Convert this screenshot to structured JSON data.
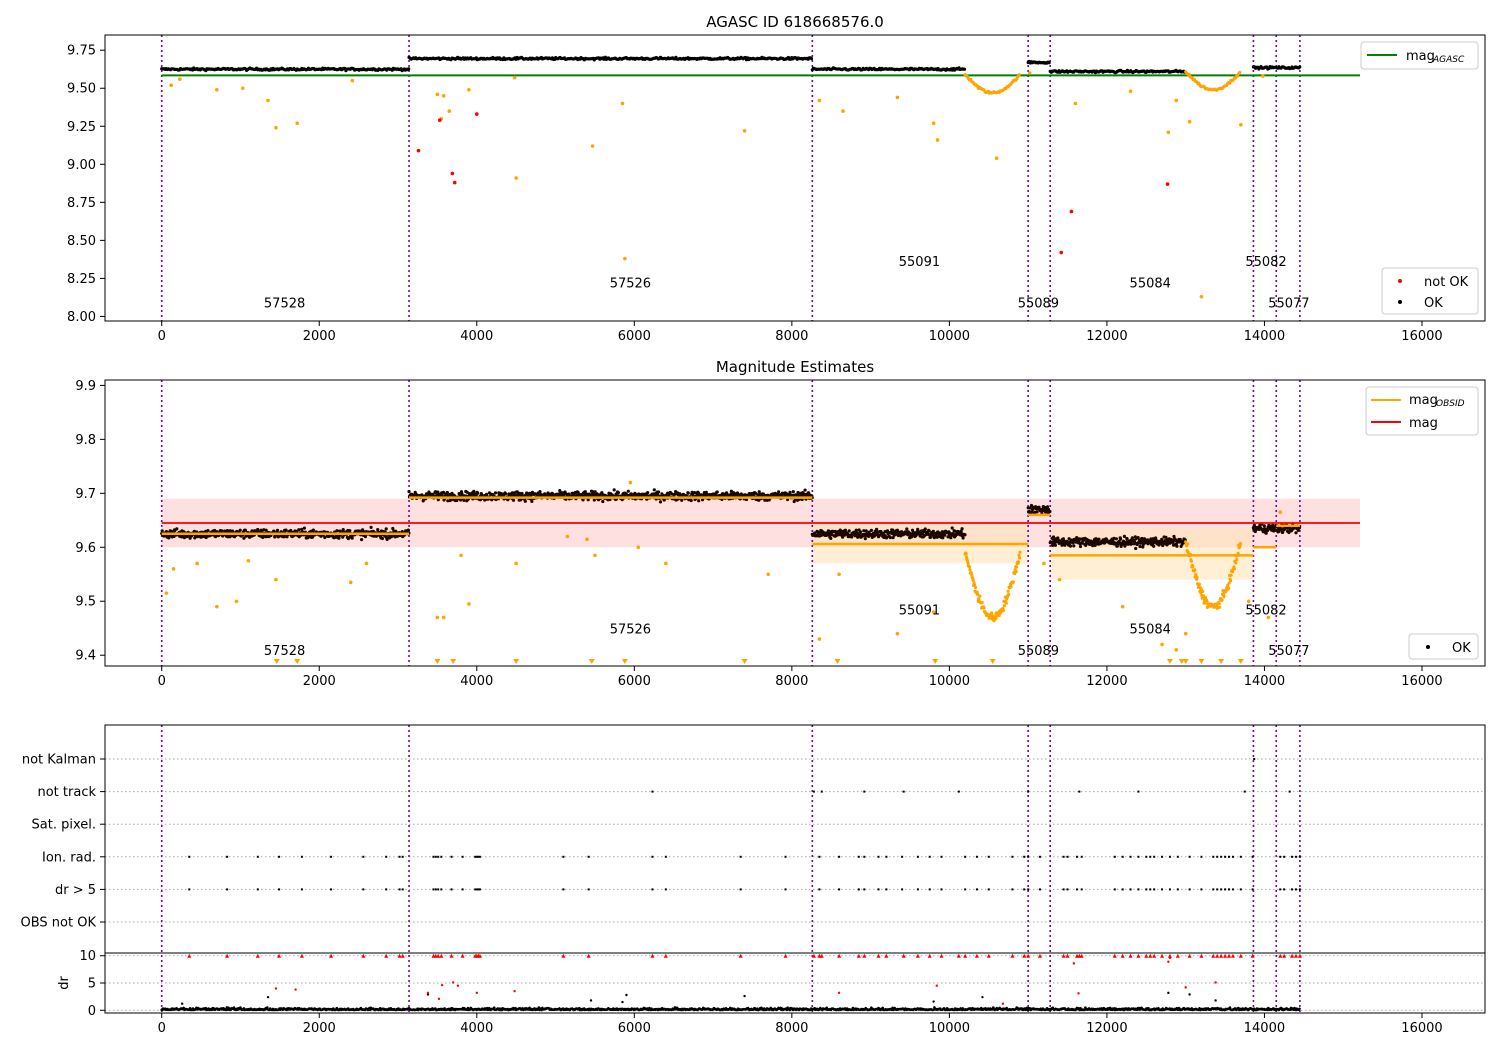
{
  "chart_data": [
    {
      "type": "scatter",
      "title": "AGASC ID 618668576.0",
      "xlabel": "",
      "ylabel": "",
      "xlim": [
        -720,
        16800
      ],
      "ylim": [
        7.97,
        9.85
      ],
      "xticks": [
        0,
        2000,
        4000,
        6000,
        8000,
        10000,
        12000,
        14000,
        16000
      ],
      "yticks": [
        "8.00",
        "8.25",
        "8.50",
        "8.75",
        "9.00",
        "9.25",
        "9.50",
        "9.75"
      ],
      "agasc_mag": 9.585,
      "obsid_boundaries": [
        0,
        3140,
        8260,
        11000,
        11280,
        13860,
        14150,
        14450
      ],
      "obsid_labels": [
        {
          "text": "57528",
          "x": 1560,
          "y": 8.06
        },
        {
          "text": "57526",
          "x": 5950,
          "y": 8.19
        },
        {
          "text": "55091",
          "x": 9620,
          "y": 8.33
        },
        {
          "text": "55089",
          "x": 11130,
          "y": 8.06
        },
        {
          "text": "55084",
          "x": 12550,
          "y": 8.19
        },
        {
          "text": "55082",
          "x": 14020,
          "y": 8.33
        },
        {
          "text": "55077",
          "x": 14310,
          "y": 8.06
        }
      ],
      "segments": [
        {
          "x0": 0,
          "x1": 3140,
          "level": 9.625
        },
        {
          "x0": 3140,
          "x1": 8260,
          "level": 9.695
        },
        {
          "x0": 8260,
          "x1": 10200,
          "level": 9.625
        },
        {
          "x0": 10200,
          "x1": 10900,
          "level": 9.47,
          "dip": true
        },
        {
          "x0": 11000,
          "x1": 11280,
          "level": 9.67
        },
        {
          "x0": 11280,
          "x1": 13000,
          "level": 9.61
        },
        {
          "x0": 13000,
          "x1": 13700,
          "level": 9.49,
          "dip": true
        },
        {
          "x0": 13860,
          "x1": 14450,
          "level": 9.635
        }
      ],
      "outliers_ok": [
        [
          120,
          9.52
        ],
        [
          230,
          9.56
        ],
        [
          700,
          9.49
        ],
        [
          1030,
          9.5
        ],
        [
          1350,
          9.42
        ],
        [
          1450,
          9.24
        ],
        [
          1720,
          9.27
        ],
        [
          2420,
          9.55
        ],
        [
          3500,
          9.46
        ],
        [
          3580,
          9.45
        ],
        [
          3550,
          9.3
        ],
        [
          3650,
          9.35
        ],
        [
          3900,
          9.49
        ],
        [
          4500,
          8.91
        ],
        [
          4480,
          9.57
        ],
        [
          5470,
          9.12
        ],
        [
          5850,
          9.4
        ],
        [
          5880,
          8.38
        ],
        [
          7400,
          9.22
        ],
        [
          8350,
          9.42
        ],
        [
          8650,
          9.35
        ],
        [
          9340,
          9.44
        ],
        [
          9800,
          9.27
        ],
        [
          9850,
          9.16
        ],
        [
          10370,
          9.5
        ],
        [
          10600,
          9.04
        ],
        [
          11020,
          9.6
        ],
        [
          11600,
          9.4
        ],
        [
          12300,
          9.48
        ],
        [
          12780,
          9.21
        ],
        [
          12880,
          9.42
        ],
        [
          13050,
          9.28
        ],
        [
          13200,
          8.13
        ],
        [
          13700,
          9.26
        ],
        [
          13980,
          9.58
        ]
      ],
      "outliers_not_ok": [
        [
          3260,
          9.09
        ],
        [
          3530,
          9.29
        ],
        [
          3690,
          8.94
        ],
        [
          3720,
          8.88
        ],
        [
          4000,
          9.33
        ],
        [
          11420,
          8.42
        ],
        [
          11550,
          8.69
        ],
        [
          12770,
          8.87
        ]
      ],
      "legend": [
        {
          "label": "mag",
          "subscript": "AGASC",
          "color": "#008000",
          "kind": "line"
        },
        {
          "label": "not OK",
          "color": "#ff0000",
          "kind": "point"
        },
        {
          "label": "OK",
          "color": "#000000",
          "kind": "point"
        }
      ],
      "legend_position": "top-right / bottom-right"
    },
    {
      "type": "scatter",
      "title": "Magnitude Estimates",
      "xlabel": "",
      "ylabel": "",
      "xlim": [
        -720,
        16800
      ],
      "ylim": [
        9.38,
        9.91
      ],
      "xticks": [
        0,
        2000,
        4000,
        6000,
        8000,
        10000,
        12000,
        14000,
        16000
      ],
      "yticks": [
        "9.4",
        "9.5",
        "9.6",
        "9.7",
        "9.8",
        "9.9"
      ],
      "mag": 9.645,
      "mag_band": [
        9.6,
        9.69
      ],
      "obsid_mag": [
        {
          "x0": 0,
          "x1": 3140,
          "value": 9.625
        },
        {
          "x0": 3140,
          "x1": 8260,
          "value": 9.692
        },
        {
          "x0": 8260,
          "x1": 11000,
          "value": 9.606,
          "band": [
            9.57,
            9.645
          ]
        },
        {
          "x0": 11000,
          "x1": 11280,
          "value": 9.66
        },
        {
          "x0": 11280,
          "x1": 13860,
          "value": 9.585,
          "band": [
            9.54,
            9.635
          ]
        },
        {
          "x0": 13860,
          "x1": 14150,
          "value": 9.6
        },
        {
          "x0": 14150,
          "x1": 14450,
          "value": 9.64
        }
      ],
      "obsid_labels": [
        {
          "text": "57528",
          "x": 1560,
          "y": 9.4
        },
        {
          "text": "57526",
          "x": 5950,
          "y": 9.44
        },
        {
          "text": "55091",
          "x": 9620,
          "y": 9.475
        },
        {
          "text": "55089",
          "x": 11130,
          "y": 9.4
        },
        {
          "text": "55084",
          "x": 12550,
          "y": 9.44
        },
        {
          "text": "55082",
          "x": 14020,
          "y": 9.475
        },
        {
          "text": "55077",
          "x": 14310,
          "y": 9.4
        }
      ],
      "outliers_ok": [
        [
          60,
          9.515
        ],
        [
          150,
          9.56
        ],
        [
          450,
          9.57
        ],
        [
          700,
          9.49
        ],
        [
          950,
          9.5
        ],
        [
          1100,
          9.575
        ],
        [
          1450,
          9.54
        ],
        [
          2400,
          9.535
        ],
        [
          2600,
          9.57
        ],
        [
          3500,
          9.47
        ],
        [
          3580,
          9.47
        ],
        [
          3800,
          9.585
        ],
        [
          3900,
          9.495
        ],
        [
          4500,
          9.57
        ],
        [
          5150,
          9.62
        ],
        [
          5400,
          9.615
        ],
        [
          5500,
          9.585
        ],
        [
          5950,
          9.72
        ],
        [
          6050,
          9.6
        ],
        [
          6400,
          9.57
        ],
        [
          7700,
          9.55
        ],
        [
          8350,
          9.43
        ],
        [
          8600,
          9.55
        ],
        [
          9340,
          9.44
        ],
        [
          9800,
          9.48
        ],
        [
          10370,
          9.5
        ],
        [
          11200,
          9.57
        ],
        [
          11400,
          9.54
        ],
        [
          12200,
          9.49
        ],
        [
          12700,
          9.42
        ],
        [
          12880,
          9.41
        ],
        [
          13000,
          9.44
        ],
        [
          13800,
          9.5
        ],
        [
          14050,
          9.47
        ],
        [
          14200,
          9.665
        ]
      ],
      "clipped_markers": [
        1460,
        1720,
        3500,
        3700,
        4500,
        5460,
        5880,
        7400,
        8580,
        9820,
        10550,
        12800,
        12950,
        13000,
        13200,
        13450,
        13700
      ],
      "legend": [
        {
          "label": "mag",
          "subscript": "OBSID",
          "color": "#ffa500",
          "kind": "line"
        },
        {
          "label": "mag",
          "color": "#ff0000",
          "kind": "line"
        },
        {
          "label": "OK",
          "color": "#000000",
          "kind": "point"
        }
      ],
      "legend_position": "top-right / bottom-right"
    },
    {
      "type": "scatter",
      "title": "",
      "xlabel": "",
      "ylabel": "",
      "xlim": [
        -720,
        16800
      ],
      "xticks": [
        0,
        2000,
        4000,
        6000,
        8000,
        10000,
        12000,
        14000,
        16000
      ],
      "flag_rows": [
        "not Kalman",
        "not track",
        "Sat. pixel.",
        "Ion. rad.",
        "dr > 5",
        "OBS not OK"
      ],
      "flags": {
        "not Kalman": [
          13870
        ],
        "not track": [
          6230,
          8280,
          8380,
          8920,
          9420,
          10120,
          11000,
          11650,
          12400,
          13750,
          14320
        ],
        "Sat. pixel.": [],
        "Ion. rad.": [
          350,
          830,
          1220,
          1490,
          1780,
          2150,
          2560,
          2850,
          3020,
          3060,
          3450,
          3480,
          3510,
          3550,
          3680,
          3820,
          3980,
          4000,
          4020,
          4040,
          5100,
          5420,
          6230,
          6400,
          7350,
          7920,
          8350,
          8600,
          8850,
          8920,
          9100,
          9200,
          9400,
          9600,
          9750,
          9900,
          10200,
          10350,
          10500,
          10800,
          10950,
          11000,
          11150,
          11450,
          11500,
          11620,
          11680,
          12100,
          12200,
          12300,
          12400,
          12500,
          12550,
          12600,
          12700,
          12800,
          12900,
          13050,
          13200,
          13350,
          13400,
          13450,
          13500,
          13550,
          13600,
          13700,
          13850,
          14200,
          14250,
          14350,
          14400,
          14450
        ],
        "dr > 5": [
          350,
          830,
          1220,
          1490,
          1780,
          2150,
          2560,
          2850,
          3020,
          3060,
          3450,
          3480,
          3510,
          3550,
          3680,
          3820,
          3980,
          4000,
          4020,
          4040,
          5100,
          5420,
          6230,
          6400,
          7350,
          7920,
          8350,
          8600,
          8850,
          8920,
          9100,
          9200,
          9400,
          9600,
          9750,
          9900,
          10200,
          10350,
          10500,
          10800,
          10950,
          11000,
          11150,
          11450,
          11500,
          11620,
          11680,
          12100,
          12200,
          12300,
          12400,
          12500,
          12550,
          12600,
          12700,
          12800,
          12900,
          13050,
          13200,
          13350,
          13400,
          13450,
          13500,
          13550,
          13600,
          13700,
          13850,
          14200,
          14250,
          14350,
          14400,
          14450
        ],
        "OBS not OK": []
      },
      "dr": {
        "ylabel": "dr",
        "yticks": [
          "0",
          "5",
          "10"
        ],
        "ylim": [
          -0.5,
          10.5
        ],
        "clipped_at_10": [
          350,
          830,
          1220,
          1490,
          1780,
          2150,
          2560,
          2850,
          3020,
          3060,
          3450,
          3480,
          3510,
          3550,
          3680,
          3820,
          3980,
          4000,
          4020,
          4040,
          5100,
          5420,
          6230,
          6400,
          7350,
          7920,
          8280,
          8350,
          8380,
          8600,
          8850,
          8920,
          9100,
          9200,
          9420,
          9600,
          9750,
          9900,
          10120,
          10200,
          10350,
          10500,
          10800,
          10950,
          11000,
          11150,
          11450,
          11500,
          11620,
          11650,
          11680,
          12100,
          12200,
          12300,
          12400,
          12500,
          12550,
          12600,
          12700,
          12800,
          12900,
          13050,
          13200,
          13350,
          13400,
          13450,
          13500,
          13550,
          13600,
          13700,
          13850,
          14200,
          14250,
          14350,
          14400,
          14450
        ],
        "red_mid": [
          [
            1450,
            4.0
          ],
          [
            1700,
            3.8
          ],
          [
            3380,
            3.2
          ],
          [
            3520,
            2.1
          ],
          [
            3560,
            4.6
          ],
          [
            3700,
            5.1
          ],
          [
            3760,
            4.5
          ],
          [
            4000,
            3.2
          ],
          [
            4480,
            3.5
          ],
          [
            8600,
            3.2
          ],
          [
            9840,
            4.5
          ],
          [
            10680,
            1.2
          ],
          [
            11580,
            8.6
          ],
          [
            11640,
            3.1
          ],
          [
            12780,
            8.9
          ],
          [
            12800,
            9.6
          ],
          [
            13000,
            4.2
          ],
          [
            13380,
            5.1
          ]
        ],
        "black_mid": [
          [
            260,
            1.2
          ],
          [
            1350,
            2.4
          ],
          [
            3380,
            2.9
          ],
          [
            5450,
            1.8
          ],
          [
            5850,
            1.5
          ],
          [
            5900,
            2.8
          ],
          [
            7400,
            2.6
          ],
          [
            9800,
            1.6
          ],
          [
            10420,
            2.4
          ],
          [
            12780,
            3.2
          ],
          [
            13050,
            2.9
          ],
          [
            13380,
            1.8
          ]
        ],
        "baseline_range": [
          0,
          14450
        ]
      }
    }
  ]
}
